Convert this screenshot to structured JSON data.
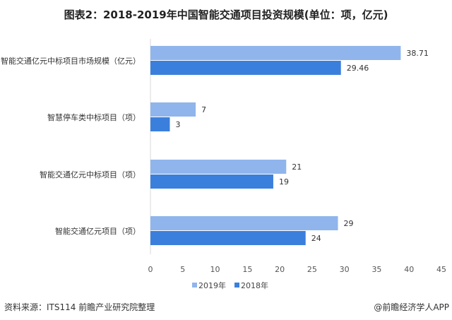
{
  "chart_data": {
    "type": "bar",
    "orientation": "horizontal",
    "title": "图表2：2018-2019年中国智能交通项目投资规模(单位：项，亿元)",
    "categories": [
      "智能交通亿元中标项目市场规模（亿元）",
      "智慧停车类中标项目（项）",
      "智能交通亿元中标项目（项）",
      "智能交通亿元项目（项）"
    ],
    "series": [
      {
        "name": "2019年",
        "values": [
          38.71,
          7,
          21,
          29
        ],
        "color": "#8fb5ec"
      },
      {
        "name": "2018年",
        "values": [
          29.46,
          3,
          19,
          24
        ],
        "color": "#3b7fdc"
      }
    ],
    "xlim": [
      0,
      45
    ],
    "xticks": [
      "0",
      "5",
      "10",
      "15",
      "20",
      "25",
      "30",
      "35",
      "40",
      "45"
    ],
    "data_labels": [
      [
        "38.71",
        "7",
        "21",
        "29"
      ],
      [
        "29.46",
        "3",
        "19",
        "24"
      ]
    ],
    "grid": false,
    "legend": "bottom"
  },
  "footer": {
    "source": "资料来源：ITS114 前瞻产业研究院整理",
    "brand": "@前瞻经济学人APP"
  }
}
